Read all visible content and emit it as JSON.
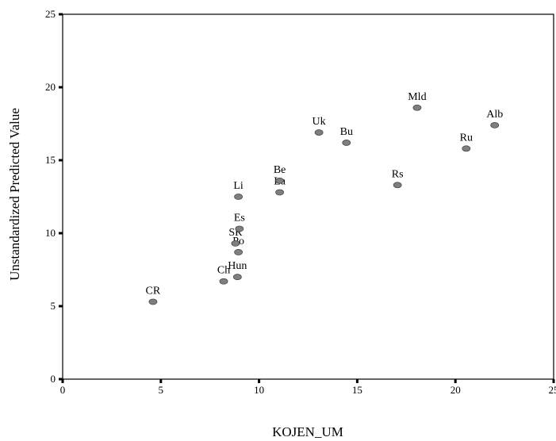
{
  "chart_data": {
    "type": "scatter",
    "title": "",
    "xlabel": "KOJEN_UM",
    "ylabel": "Unstandardized Predicted Value",
    "xlim": [
      0,
      25
    ],
    "ylim": [
      0,
      25
    ],
    "xticks": [
      "0",
      "5",
      "10",
      "15",
      "20",
      "25"
    ],
    "yticks": [
      "0",
      "5",
      "10",
      "15",
      "20",
      "25"
    ],
    "grid": false,
    "legend": "none",
    "marker_color": "#7f7f7f",
    "points": [
      {
        "label": "CR",
        "x": 4.6,
        "y": 5.3
      },
      {
        "label": "Ch",
        "x": 8.2,
        "y": 6.7
      },
      {
        "label": "Hun",
        "x": 8.9,
        "y": 7.0
      },
      {
        "label": "Po",
        "x": 8.95,
        "y": 8.7
      },
      {
        "label": "SR",
        "x": 8.8,
        "y": 9.3
      },
      {
        "label": "Es",
        "x": 9.0,
        "y": 10.3
      },
      {
        "label": "Li",
        "x": 8.95,
        "y": 12.5
      },
      {
        "label": "La",
        "x": 11.05,
        "y": 12.8
      },
      {
        "label": "Be",
        "x": 11.05,
        "y": 13.6
      },
      {
        "label": "Uk",
        "x": 13.05,
        "y": 16.9
      },
      {
        "label": "Bu",
        "x": 14.45,
        "y": 16.2
      },
      {
        "label": "Rs",
        "x": 17.05,
        "y": 13.3
      },
      {
        "label": "Mld",
        "x": 18.05,
        "y": 18.6
      },
      {
        "label": "Ru",
        "x": 20.55,
        "y": 15.8
      },
      {
        "label": "Alb",
        "x": 22.0,
        "y": 17.4
      }
    ]
  }
}
